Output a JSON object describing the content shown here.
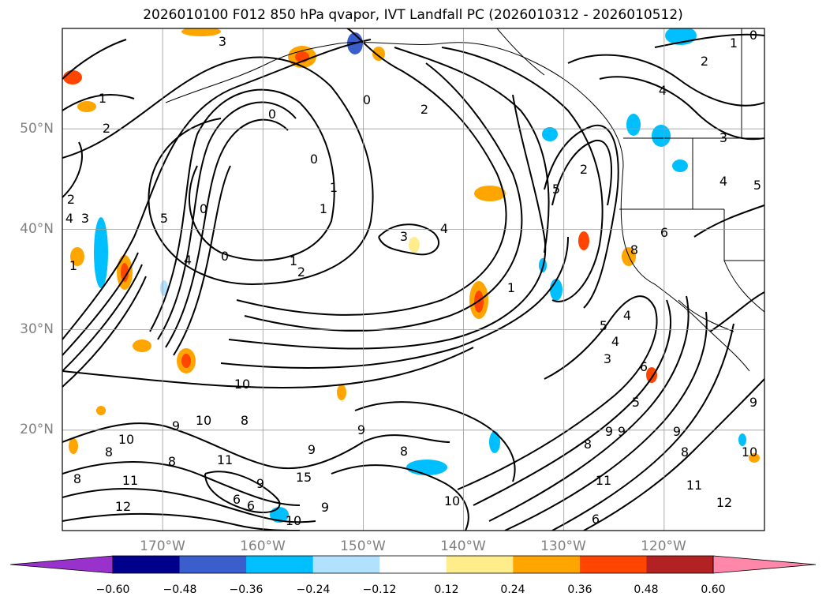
{
  "title": "2026010100 F012 850 hPa qvapor, IVT Landfall PC (2026010312 - 2026010512)",
  "map": {
    "lat_labels": [
      "50°N",
      "40°N",
      "30°N",
      "20°N"
    ],
    "lon_labels": [
      "170°W",
      "160°W",
      "150°W",
      "140°W",
      "130°W",
      "120°W"
    ],
    "lat_values": [
      50,
      40,
      30,
      20
    ],
    "lon_values": [
      -170,
      -160,
      -150,
      -140,
      -130,
      -120
    ],
    "lon_range": [
      -180,
      -110
    ],
    "lat_range": [
      10,
      60
    ],
    "grid": true,
    "contour_labels": [
      "0",
      "1",
      "2",
      "3",
      "4",
      "5",
      "6",
      "8",
      "9",
      "10",
      "11",
      "12",
      "15"
    ]
  },
  "colorbar": {
    "ticks": [
      "−0.60",
      "−0.48",
      "−0.36",
      "−0.24",
      "−0.12",
      "0.12",
      "0.24",
      "0.36",
      "0.48",
      "0.60"
    ],
    "colors": [
      "#9932cc",
      "#00008b",
      "#3a5fcd",
      "#00bfff",
      "#b0e2ff",
      "#ffffff",
      "#ffec8b",
      "#ffa500",
      "#ff4500",
      "#b22222",
      "#ff88aa"
    ],
    "extend": "both"
  }
}
